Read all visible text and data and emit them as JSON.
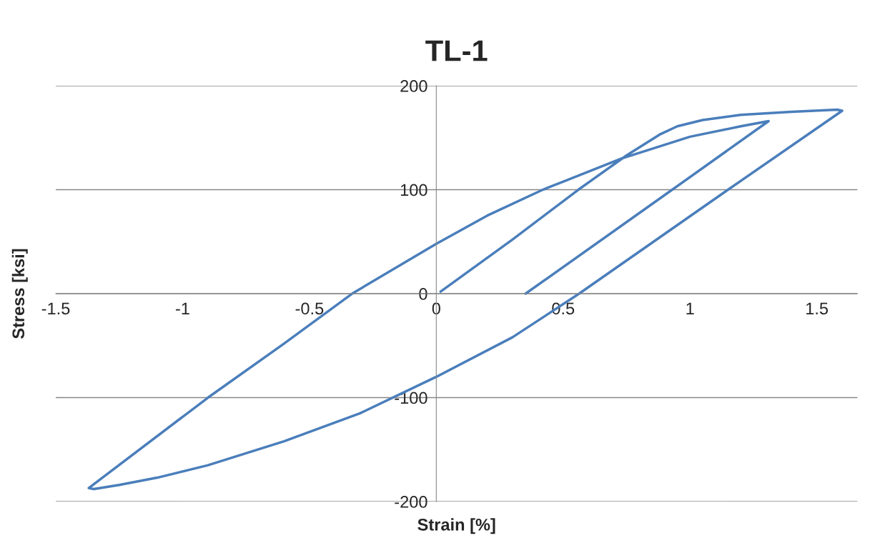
{
  "chart_data": {
    "type": "line",
    "title": "TL-1",
    "xlabel": "Strain [%]",
    "ylabel": "Stress [ksi]",
    "xlim": [
      -1.5,
      1.66
    ],
    "xticks": [
      -1.5,
      -1,
      -0.5,
      0,
      0.5,
      1,
      1.5
    ],
    "ylim": [
      -200,
      200
    ],
    "yticks": [
      -200,
      -100,
      0,
      100,
      200
    ],
    "grid": "y",
    "legend": false,
    "marker": "none",
    "line_style": "solid",
    "series": [
      {
        "color": "#4a7ebb",
        "x": [
          0.017,
          0.3,
          0.56,
          0.75,
          0.88,
          0.95,
          1.05,
          1.2,
          1.4,
          1.58,
          1.6,
          1.15,
          0.563,
          0.3,
          0,
          -0.3,
          -0.6,
          -0.9,
          -1.1,
          -1.25,
          -1.35,
          -1.37,
          -0.9,
          -0.6,
          -0.332,
          0,
          0.2,
          0.42,
          0.73,
          1.0,
          1.2,
          1.31,
          0.93,
          0.352
        ],
        "values": [
          2,
          52,
          100,
          133,
          153,
          161,
          167,
          172,
          175,
          177,
          176,
          100,
          0,
          -42,
          -80,
          -115,
          -142,
          -165,
          -177,
          -184,
          -188,
          -187,
          -100,
          -48,
          0,
          48,
          75,
          100,
          130,
          151,
          161,
          166,
          100,
          0
        ]
      }
    ]
  }
}
